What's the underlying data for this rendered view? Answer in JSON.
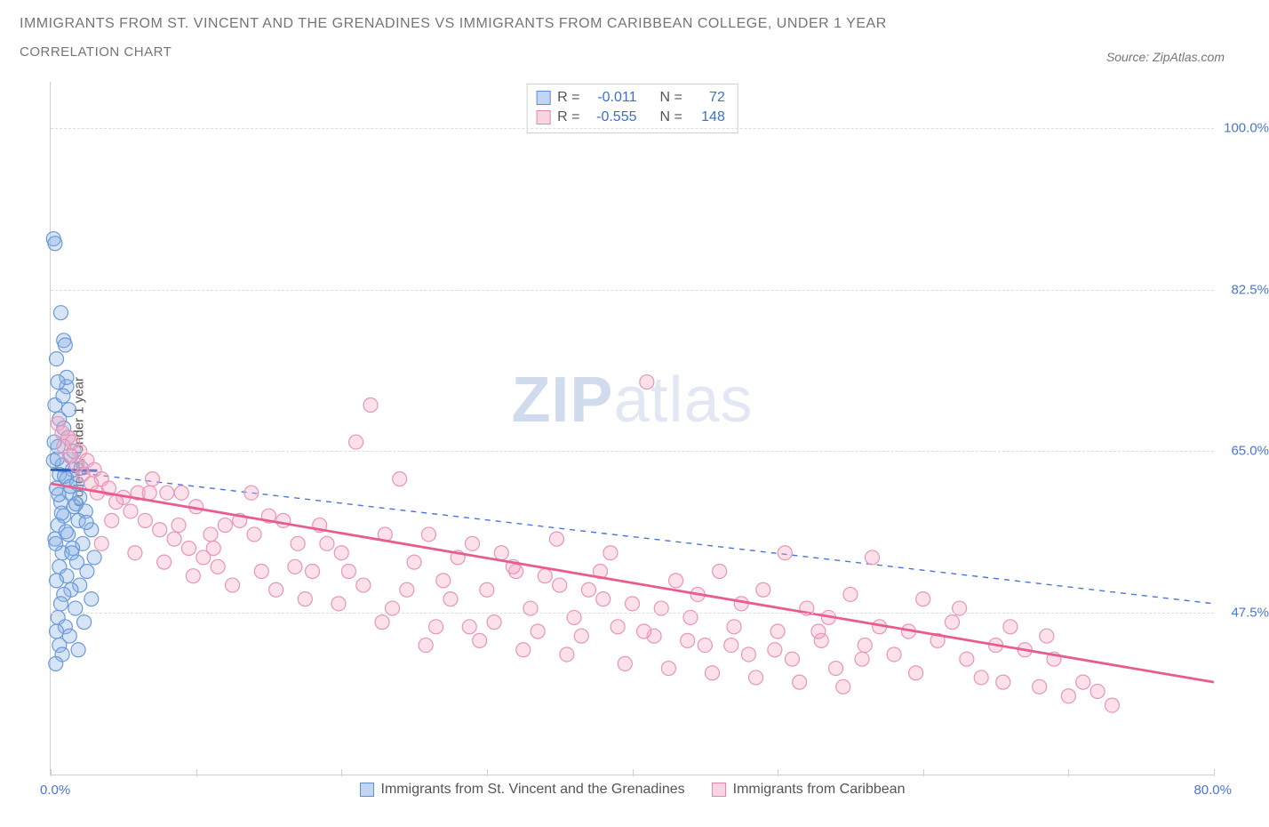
{
  "title_line1": "IMMIGRANTS FROM ST. VINCENT AND THE GRENADINES VS IMMIGRANTS FROM CARIBBEAN COLLEGE, UNDER 1 YEAR",
  "title_line2": "CORRELATION CHART",
  "source_text": "Source: ZipAtlas.com",
  "ylabel": "College, Under 1 year",
  "watermark_bold": "ZIP",
  "watermark_rest": "atlas",
  "chart": {
    "type": "scatter",
    "xlim": [
      0,
      80
    ],
    "ylim": [
      30,
      105
    ],
    "x_tick_start_label": "0.0%",
    "x_tick_end_label": "80.0%",
    "x_minor_ticks": [
      0,
      10,
      20,
      30,
      40,
      50,
      60,
      70,
      80
    ],
    "y_gridlines": [
      47.5,
      65.0,
      82.5,
      100.0
    ],
    "y_tick_labels": [
      "47.5%",
      "65.0%",
      "82.5%",
      "100.0%"
    ],
    "plot_bg": "#ffffff",
    "grid_color": "#dcdcdc",
    "border_color": "#cfcfcf",
    "marker_radius": 8,
    "series": [
      {
        "key": "blue",
        "name": "Immigrants from St. Vincent and the Grenadines",
        "R": "-0.011",
        "N": "72",
        "color_fill": "rgba(140,178,230,0.35)",
        "color_stroke": "#6a9ad8",
        "trend": {
          "x1": 0,
          "y1": 63.0,
          "x2": 80,
          "y2": 48.5,
          "stroke": "#4a74d8",
          "width": 1.4,
          "dash": "6,6"
        },
        "trend_solid_short": {
          "x1": 0,
          "y1": 63.0,
          "x2": 3.2,
          "y2": 62.9,
          "stroke": "#2b5fc7",
          "width": 3
        },
        "points": [
          [
            0.2,
            88
          ],
          [
            0.3,
            87.5
          ],
          [
            0.7,
            80
          ],
          [
            0.9,
            77
          ],
          [
            1.0,
            76.5
          ],
          [
            0.4,
            75
          ],
          [
            1.1,
            72
          ],
          [
            0.3,
            70
          ],
          [
            0.6,
            68.5
          ],
          [
            0.9,
            67.5
          ],
          [
            1.2,
            66.5
          ],
          [
            0.5,
            65.5
          ],
          [
            1.4,
            64.5
          ],
          [
            0.2,
            64
          ],
          [
            0.8,
            63.5
          ],
          [
            1.5,
            63
          ],
          [
            0.6,
            62.5
          ],
          [
            1.1,
            62
          ],
          [
            1.8,
            61.5
          ],
          [
            0.4,
            61
          ],
          [
            1.3,
            60.5
          ],
          [
            2.0,
            60
          ],
          [
            0.7,
            59.5
          ],
          [
            1.6,
            59
          ],
          [
            2.4,
            58.5
          ],
          [
            0.9,
            58
          ],
          [
            1.9,
            57.5
          ],
          [
            0.5,
            57
          ],
          [
            2.8,
            56.5
          ],
          [
            1.2,
            56
          ],
          [
            0.3,
            55.5
          ],
          [
            2.2,
            55
          ],
          [
            1.5,
            54.5
          ],
          [
            0.8,
            54
          ],
          [
            3.0,
            53.5
          ],
          [
            1.8,
            53
          ],
          [
            0.6,
            52.5
          ],
          [
            2.5,
            52
          ],
          [
            1.1,
            51.5
          ],
          [
            0.4,
            51
          ],
          [
            2.0,
            50.5
          ],
          [
            1.4,
            50
          ],
          [
            0.9,
            49.5
          ],
          [
            2.8,
            49
          ],
          [
            0.7,
            48.5
          ],
          [
            1.7,
            48
          ],
          [
            0.5,
            47
          ],
          [
            2.3,
            46.5
          ],
          [
            1.0,
            46
          ],
          [
            0.4,
            45.5
          ],
          [
            1.3,
            45
          ],
          [
            0.6,
            44
          ],
          [
            1.9,
            43.5
          ],
          [
            0.8,
            43
          ],
          [
            0.35,
            42
          ],
          [
            1.1,
            73
          ],
          [
            0.5,
            72.5
          ],
          [
            0.85,
            71
          ],
          [
            1.25,
            69.5
          ],
          [
            0.25,
            66
          ],
          [
            1.6,
            65
          ],
          [
            0.45,
            64.2
          ],
          [
            2.1,
            63.2
          ],
          [
            0.95,
            62.3
          ],
          [
            1.35,
            61.2
          ],
          [
            0.55,
            60.3
          ],
          [
            1.75,
            59.3
          ],
          [
            0.75,
            58.3
          ],
          [
            2.45,
            57.3
          ],
          [
            1.05,
            56.3
          ],
          [
            0.35,
            55
          ],
          [
            1.45,
            54
          ]
        ]
      },
      {
        "key": "pink",
        "name": "Immigrants from Caribbean",
        "R": "-0.555",
        "N": "148",
        "color_fill": "rgba(246,170,198,0.35)",
        "color_stroke": "#e695b6",
        "trend": {
          "x1": 0,
          "y1": 61.5,
          "x2": 80,
          "y2": 40.0,
          "stroke": "#e75d8f",
          "width": 2.8,
          "dash": ""
        },
        "points": [
          [
            0.5,
            68
          ],
          [
            0.8,
            67
          ],
          [
            1.2,
            66.5
          ],
          [
            1.5,
            66
          ],
          [
            0.9,
            65.5
          ],
          [
            2.0,
            65
          ],
          [
            1.3,
            64.5
          ],
          [
            2.5,
            64
          ],
          [
            1.8,
            63.5
          ],
          [
            3.0,
            63
          ],
          [
            2.2,
            62.5
          ],
          [
            3.5,
            62
          ],
          [
            2.8,
            61.5
          ],
          [
            4.0,
            61
          ],
          [
            3.2,
            60.5
          ],
          [
            5.0,
            60
          ],
          [
            4.5,
            59.5
          ],
          [
            6.0,
            60.5
          ],
          [
            5.5,
            58.5
          ],
          [
            7.0,
            62
          ],
          [
            6.5,
            57.5
          ],
          [
            8.0,
            60.5
          ],
          [
            7.5,
            56.5
          ],
          [
            9.0,
            60.5
          ],
          [
            8.5,
            55.5
          ],
          [
            10.0,
            59
          ],
          [
            9.5,
            54.5
          ],
          [
            11.0,
            56
          ],
          [
            10.5,
            53.5
          ],
          [
            12.0,
            57
          ],
          [
            11.5,
            52.5
          ],
          [
            13.0,
            57.5
          ],
          [
            14.0,
            56
          ],
          [
            15.0,
            58
          ],
          [
            14.5,
            52
          ],
          [
            16.0,
            57.5
          ],
          [
            17.0,
            55
          ],
          [
            18.0,
            52
          ],
          [
            17.5,
            49
          ],
          [
            19.0,
            55
          ],
          [
            20.0,
            54
          ],
          [
            21.0,
            66
          ],
          [
            20.5,
            52
          ],
          [
            22.0,
            70
          ],
          [
            23.0,
            56
          ],
          [
            24.0,
            62
          ],
          [
            23.5,
            48
          ],
          [
            25.0,
            53
          ],
          [
            26.0,
            56
          ],
          [
            27.0,
            51
          ],
          [
            26.5,
            46
          ],
          [
            28.0,
            53.5
          ],
          [
            29.0,
            55
          ],
          [
            30.0,
            50
          ],
          [
            29.5,
            44.5
          ],
          [
            31.0,
            54
          ],
          [
            32.0,
            52
          ],
          [
            33.0,
            48
          ],
          [
            32.5,
            43.5
          ],
          [
            34.0,
            51.5
          ],
          [
            35.0,
            50.5
          ],
          [
            36.0,
            47
          ],
          [
            35.5,
            43
          ],
          [
            37.0,
            50
          ],
          [
            38.0,
            49
          ],
          [
            39.0,
            46
          ],
          [
            38.5,
            54
          ],
          [
            40.0,
            48.5
          ],
          [
            41.0,
            72.5
          ],
          [
            42.0,
            48
          ],
          [
            41.5,
            45
          ],
          [
            43.0,
            51
          ],
          [
            44.0,
            47
          ],
          [
            45.0,
            44
          ],
          [
            44.5,
            49.5
          ],
          [
            46.0,
            52
          ],
          [
            47.0,
            46
          ],
          [
            48.0,
            43
          ],
          [
            47.5,
            48.5
          ],
          [
            49.0,
            50
          ],
          [
            50.0,
            45.5
          ],
          [
            51.0,
            42.5
          ],
          [
            50.5,
            54
          ],
          [
            52.0,
            48
          ],
          [
            53.0,
            44.5
          ],
          [
            54.0,
            41.5
          ],
          [
            53.5,
            47
          ],
          [
            55.0,
            49.5
          ],
          [
            56.0,
            44
          ],
          [
            57.0,
            46
          ],
          [
            56.5,
            53.5
          ],
          [
            58.0,
            43
          ],
          [
            59.0,
            45.5
          ],
          [
            60.0,
            49
          ],
          [
            59.5,
            41
          ],
          [
            61.0,
            44.5
          ],
          [
            62.0,
            46.5
          ],
          [
            63.0,
            42.5
          ],
          [
            62.5,
            48
          ],
          [
            64.0,
            40.5
          ],
          [
            65.0,
            44
          ],
          [
            66.0,
            46
          ],
          [
            65.5,
            40
          ],
          [
            67.0,
            43.5
          ],
          [
            68.0,
            39.5
          ],
          [
            69.0,
            42.5
          ],
          [
            68.5,
            45
          ],
          [
            70.0,
            38.5
          ],
          [
            71.0,
            40
          ],
          [
            72.0,
            39
          ],
          [
            73.0,
            37.5
          ],
          [
            3.5,
            55
          ],
          [
            4.2,
            57.5
          ],
          [
            5.8,
            54
          ],
          [
            6.8,
            60.5
          ],
          [
            7.8,
            53
          ],
          [
            8.8,
            57
          ],
          [
            9.8,
            51.5
          ],
          [
            11.2,
            54.5
          ],
          [
            12.5,
            50.5
          ],
          [
            13.8,
            60.5
          ],
          [
            15.5,
            50
          ],
          [
            16.8,
            52.5
          ],
          [
            18.5,
            57
          ],
          [
            19.8,
            48.5
          ],
          [
            21.5,
            50.5
          ],
          [
            22.8,
            46.5
          ],
          [
            24.5,
            50
          ],
          [
            25.8,
            44
          ],
          [
            27.5,
            49
          ],
          [
            28.8,
            46
          ],
          [
            30.5,
            46.5
          ],
          [
            31.8,
            52.5
          ],
          [
            33.5,
            45.5
          ],
          [
            34.8,
            55.5
          ],
          [
            36.5,
            45
          ],
          [
            37.8,
            52
          ],
          [
            39.5,
            42
          ],
          [
            40.8,
            45.5
          ],
          [
            42.5,
            41.5
          ],
          [
            43.8,
            44.5
          ],
          [
            45.5,
            41
          ],
          [
            46.8,
            44
          ],
          [
            48.5,
            40.5
          ],
          [
            49.8,
            43.5
          ],
          [
            51.5,
            40
          ],
          [
            52.8,
            45.5
          ],
          [
            54.5,
            39.5
          ],
          [
            55.8,
            42.5
          ]
        ]
      }
    ]
  },
  "stats_labels": {
    "R": "R =",
    "N": "N ="
  },
  "legend_items": [
    {
      "swatch": "blue",
      "label": "Immigrants from St. Vincent and the Grenadines"
    },
    {
      "swatch": "pink",
      "label": "Immigrants from Caribbean"
    }
  ]
}
